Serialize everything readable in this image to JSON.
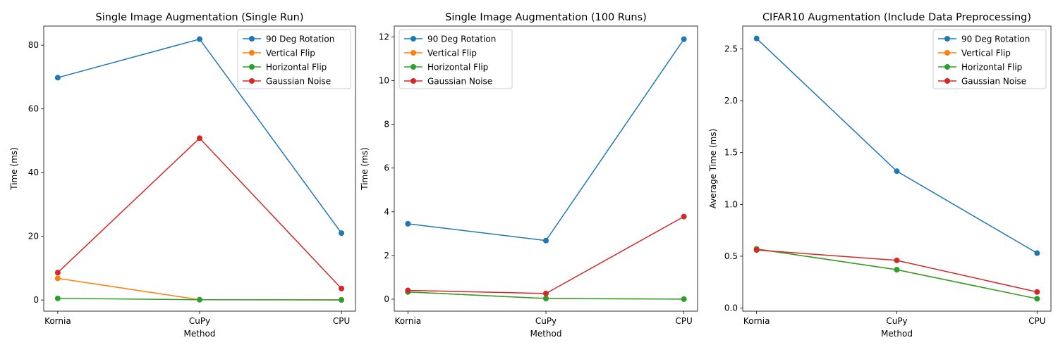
{
  "chart_data": [
    {
      "type": "line",
      "title": "Single Image Augmentation (Single Run)",
      "xlabel": "Method",
      "ylabel": "Time (ms)",
      "categories": [
        "Kornia",
        "CuPy",
        "CPU"
      ],
      "ylim": [
        -3.5,
        86
      ],
      "yticks": [
        0,
        20,
        40,
        60,
        80
      ],
      "yticklabels": [
        "0",
        "20",
        "40",
        "60",
        "80"
      ],
      "legend_position": "top-right",
      "series": [
        {
          "name": "90 Deg Rotation",
          "color": "#1f77b4",
          "values": [
            69.8,
            81.9,
            21.0
          ]
        },
        {
          "name": "Vertical Flip",
          "color": "#ff7f0e",
          "values": [
            6.8,
            0.1,
            0.1
          ]
        },
        {
          "name": "Horizontal Flip",
          "color": "#2ca02c",
          "values": [
            0.5,
            0.1,
            0.0
          ]
        },
        {
          "name": "Gaussian Noise",
          "color": "#d62728",
          "values": [
            8.6,
            50.8,
            3.6
          ]
        }
      ]
    },
    {
      "type": "line",
      "title": "Single Image Augmentation (100 Runs)",
      "xlabel": "Method",
      "ylabel": "Time (ms)",
      "categories": [
        "Kornia",
        "CuPy",
        "CPU"
      ],
      "ylim": [
        -0.55,
        12.5
      ],
      "yticks": [
        0,
        2,
        4,
        6,
        8,
        10,
        12
      ],
      "yticklabels": [
        "0",
        "2",
        "4",
        "6",
        "8",
        "10",
        "12"
      ],
      "legend_position": "top-left",
      "series": [
        {
          "name": "90 Deg Rotation",
          "color": "#1f77b4",
          "values": [
            3.45,
            2.68,
            11.9
          ]
        },
        {
          "name": "Vertical Flip",
          "color": "#ff7f0e",
          "values": [
            0.33,
            0.03,
            0.0
          ]
        },
        {
          "name": "Horizontal Flip",
          "color": "#2ca02c",
          "values": [
            0.33,
            0.03,
            0.0
          ]
        },
        {
          "name": "Gaussian Noise",
          "color": "#d62728",
          "values": [
            0.4,
            0.26,
            3.78
          ]
        }
      ]
    },
    {
      "type": "line",
      "title": "CIFAR10 Augmentation (Include Data Preprocessing)",
      "xlabel": "Method",
      "ylabel": "Average Time (ms)",
      "categories": [
        "Kornia",
        "CuPy",
        "CPU"
      ],
      "ylim": [
        -0.03,
        2.72
      ],
      "yticks": [
        0,
        0.5,
        1.0,
        1.5,
        2.0,
        2.5
      ],
      "yticklabels": [
        "0.0",
        "0.5",
        "1.0",
        "1.5",
        "2.0",
        "2.5"
      ],
      "legend_position": "top-right",
      "series": [
        {
          "name": "90 Deg Rotation",
          "color": "#1f77b4",
          "values": [
            2.6,
            1.32,
            0.53
          ]
        },
        {
          "name": "Vertical Flip",
          "color": "#ff7f0e",
          "values": [
            0.57,
            0.37,
            0.09
          ]
        },
        {
          "name": "Horizontal Flip",
          "color": "#2ca02c",
          "values": [
            0.57,
            0.37,
            0.09
          ]
        },
        {
          "name": "Gaussian Noise",
          "color": "#d62728",
          "values": [
            0.56,
            0.46,
            0.155
          ]
        }
      ]
    }
  ]
}
